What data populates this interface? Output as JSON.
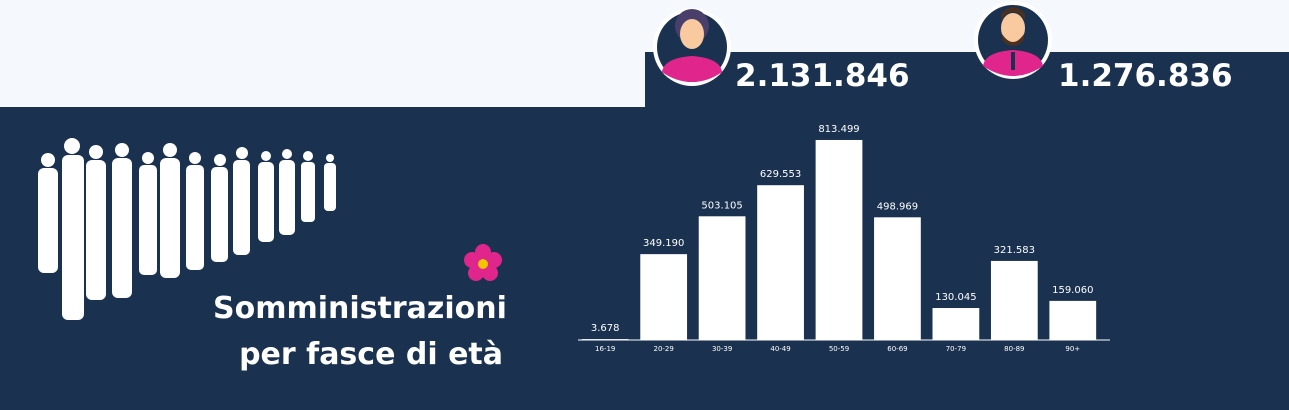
{
  "summary": {
    "female_total": "2.131.846",
    "male_total": "1.276.836"
  },
  "chart_data": {
    "type": "bar",
    "title": "Somministrazioni per fasce di età",
    "categories": [
      "16-19",
      "20-29",
      "30-39",
      "40-49",
      "50-59",
      "60-69",
      "70-79",
      "80-89",
      "90+"
    ],
    "values": [
      3678,
      349190,
      503105,
      629553,
      813499,
      498969,
      130045,
      321583,
      159060
    ],
    "value_labels": [
      "3.678",
      "349.190",
      "503.105",
      "629.553",
      "813.499",
      "498.969",
      "130.045",
      "321.583",
      "159.060"
    ],
    "color": "#ffffff",
    "ylim": [
      0,
      850000
    ]
  }
}
